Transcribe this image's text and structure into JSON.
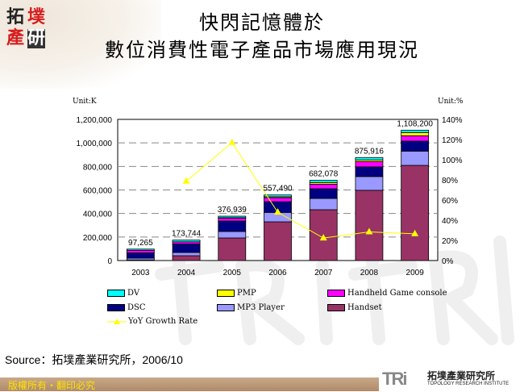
{
  "header": {
    "logo_text": "拓墣產研",
    "title_line1": "快閃記憶體於",
    "title_line2": "數位消費性電子產品市場應用現況"
  },
  "chart_data": {
    "type": "bar",
    "stacked": true,
    "categories": [
      "2003",
      "2004",
      "2005",
      "2006",
      "2007",
      "2008",
      "2009"
    ],
    "y_left_label": "Unit:K",
    "y_right_label": "Unit:%",
    "ylim": [
      0,
      1200000
    ],
    "y_ticks": [
      "0",
      "200,000",
      "400,000",
      "600,000",
      "800,000",
      "1,000,000",
      "1,200,000"
    ],
    "y2lim": [
      0,
      140
    ],
    "y2_ticks": [
      "0%",
      "20%",
      "40%",
      "60%",
      "80%",
      "100%",
      "120%",
      "140%"
    ],
    "grid": "dashed horizontal",
    "legend_placement": "bottom",
    "series": [
      {
        "name": "Handset",
        "color": "#993366",
        "values": [
          5000,
          41000,
          192000,
          329000,
          432000,
          597000,
          809000
        ]
      },
      {
        "name": "MP3 Player",
        "color": "#9999ff",
        "values": [
          15000,
          27000,
          55000,
          80000,
          96000,
          117000,
          121000
        ]
      },
      {
        "name": "DSC",
        "color": "#000080",
        "values": [
          45000,
          73000,
          89000,
          91000,
          82000,
          82000,
          85000
        ]
      },
      {
        "name": "Handheld Game console",
        "color": "#ff00ff",
        "values": [
          22000,
          18000,
          25000,
          34000,
          39000,
          46000,
          46000
        ]
      },
      {
        "name": "PMP",
        "color": "#ffff00",
        "values": [
          0,
          0,
          3000,
          8000,
          14000,
          14000,
          27000
        ]
      },
      {
        "name": "DV",
        "color": "#00ffff",
        "values": [
          10265,
          14744,
          12939,
          15490,
          19078,
          19916,
          20200
        ]
      }
    ],
    "totals": [
      97265,
      173744,
      376939,
      557490,
      682078,
      875916,
      1108200
    ],
    "total_labels": [
      "97,265",
      "173,744",
      "376,939",
      "557,490",
      "682,078",
      "875,916",
      "1,108,200"
    ],
    "line_series": {
      "name": "YoY Growth Rate",
      "color": "#ffff00",
      "axis": "right",
      "values": [
        null,
        78.6,
        117.0,
        47.9,
        22.3,
        28.4,
        26.5
      ]
    }
  },
  "legend": [
    "DV",
    "PMP",
    "Handheld Game console",
    "DSC",
    "MP3 Player",
    "Handset",
    "YoY Growth Rate"
  ],
  "source": "Source：拓墣產業研究所，2006/10",
  "footer": {
    "copyright": "版權所有・翻印必究",
    "org_logo_letters": "TRi",
    "org_name_cn": "拓墣產業研究所",
    "org_name_en": "TOPOLOGY RESEARCH INSTITUTE"
  }
}
